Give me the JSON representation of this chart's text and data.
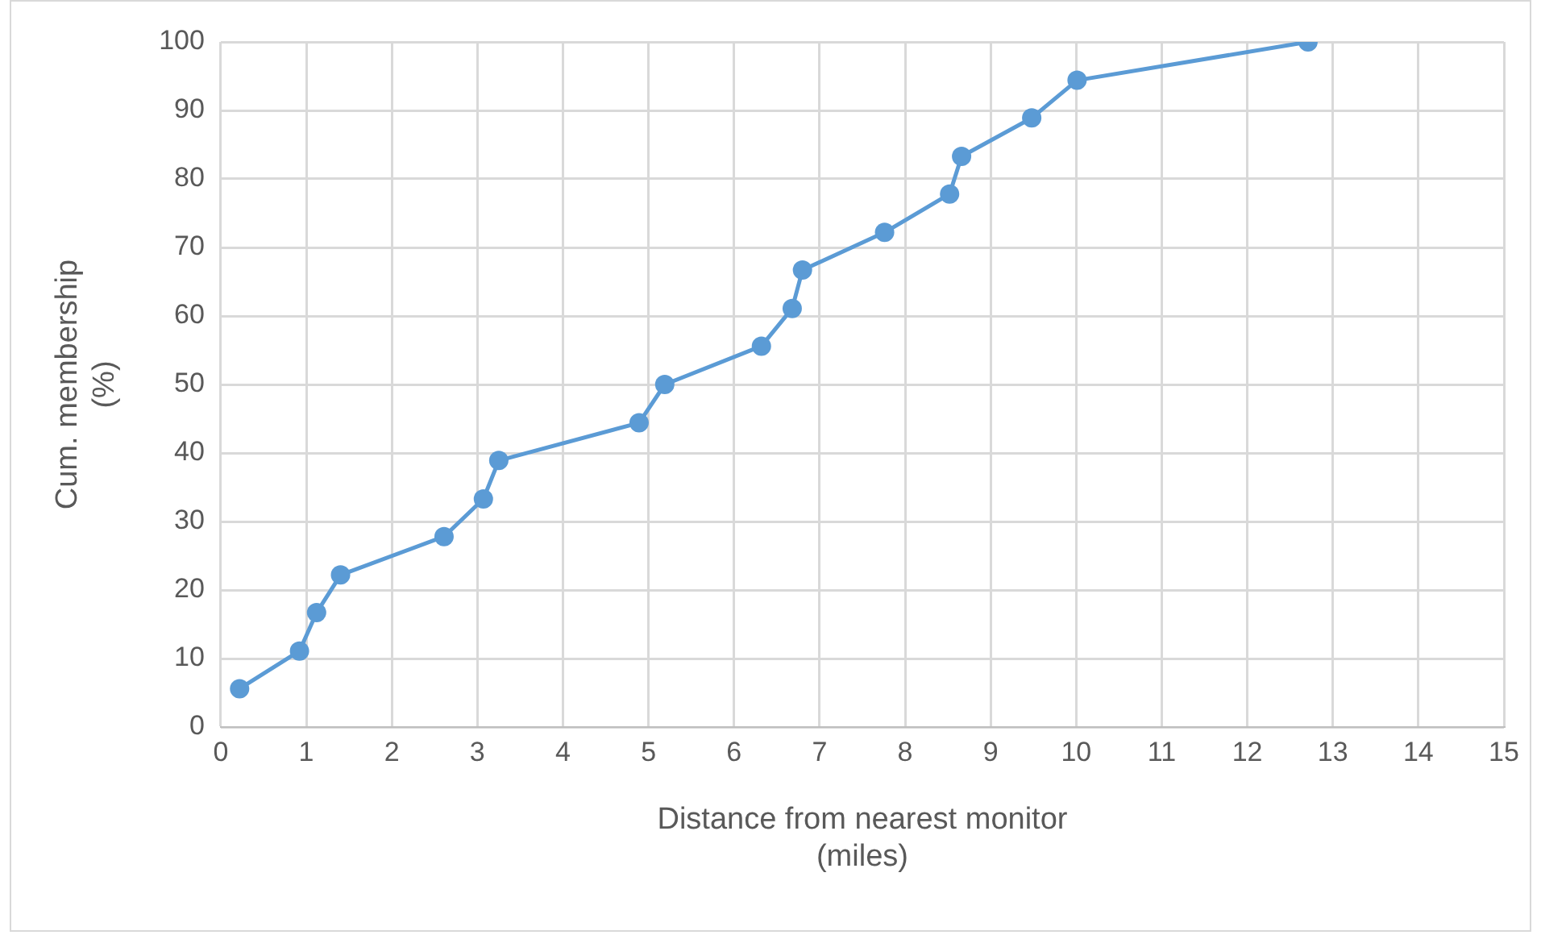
{
  "chart_data": {
    "type": "line",
    "xlabel": "Distance from nearest monitor\n(miles)",
    "ylabel": "Cum. membership\n(%)",
    "x": [
      0.22,
      0.92,
      1.12,
      1.4,
      2.61,
      3.07,
      3.25,
      4.89,
      5.19,
      6.32,
      6.68,
      6.8,
      7.76,
      8.52,
      8.66,
      9.48,
      10.01,
      12.71
    ],
    "series": [
      {
        "color": "#5b9bd5",
        "values": [
          5.6,
          11.1,
          16.7,
          22.2,
          27.8,
          33.3,
          38.9,
          44.4,
          50,
          55.6,
          61.1,
          66.7,
          72.2,
          77.8,
          83.3,
          88.9,
          94.4,
          100
        ]
      }
    ],
    "xlim": [
      0,
      15
    ],
    "xticks": [
      0,
      1,
      2,
      3,
      4,
      5,
      6,
      7,
      8,
      9,
      10,
      11,
      12,
      13,
      14,
      15
    ],
    "ylim": [
      0,
      100
    ],
    "yticks": [
      0,
      10,
      20,
      30,
      40,
      50,
      60,
      70,
      80,
      90,
      100
    ],
    "grid": true,
    "legend": false,
    "marker": "circle",
    "line_style": "solid"
  }
}
